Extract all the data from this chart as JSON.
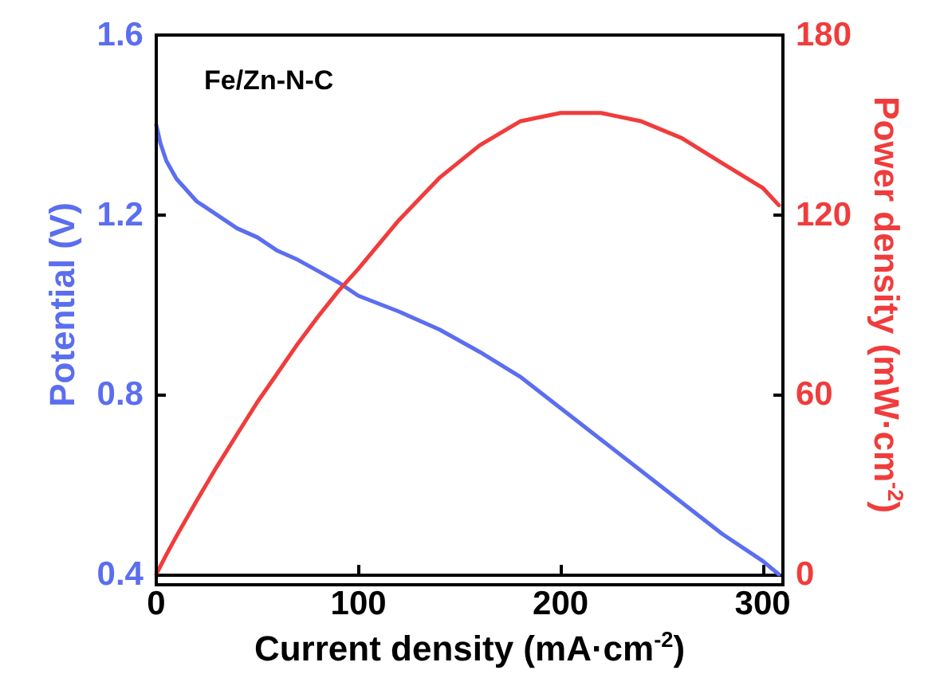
{
  "chart_data": {
    "type": "line",
    "xlabel": "Current density (mA·cm$^{-2}$)",
    "ylabel": "Potential (V)",
    "y2label": "Power density (mW·cm$^{-2}$)",
    "annotations": [
      "Fe/Zn-N-C"
    ],
    "x": [
      0,
      2,
      5,
      10,
      20,
      30,
      40,
      50,
      60,
      70,
      80,
      90,
      100,
      120,
      140,
      160,
      180,
      200,
      220,
      240,
      260,
      280,
      300,
      308
    ],
    "series": [
      {
        "color": "#5b6ef0",
        "values": [
          1.4,
          1.36,
          1.32,
          1.28,
          1.23,
          1.2,
          1.17,
          1.15,
          1.12,
          1.1,
          1.075,
          1.05,
          1.02,
          0.985,
          0.945,
          0.895,
          0.84,
          0.77,
          0.7,
          0.63,
          0.56,
          0.49,
          0.43,
          0.4
        ]
      },
      {
        "color": "#f03c3c",
        "axis": "y2",
        "values": [
          0,
          2.7,
          6.6,
          12.8,
          24.6,
          36,
          46.8,
          57.5,
          67.2,
          77,
          86,
          94.5,
          102,
          118.2,
          132.3,
          143.2,
          151.2,
          154,
          154,
          151.2,
          145.6,
          137.2,
          129,
          123.2
        ]
      }
    ],
    "xlim": [
      0,
      310
    ],
    "xticks": [
      0,
      100,
      200,
      300
    ],
    "ylim": [
      0.4,
      1.6
    ],
    "yticks": [
      0.4,
      0.8,
      1.2,
      1.6
    ],
    "y2lim": [
      0,
      180
    ],
    "y2ticks": [
      0,
      60,
      120,
      180
    ],
    "grid": false,
    "marker": "none",
    "line_style": "solid"
  }
}
